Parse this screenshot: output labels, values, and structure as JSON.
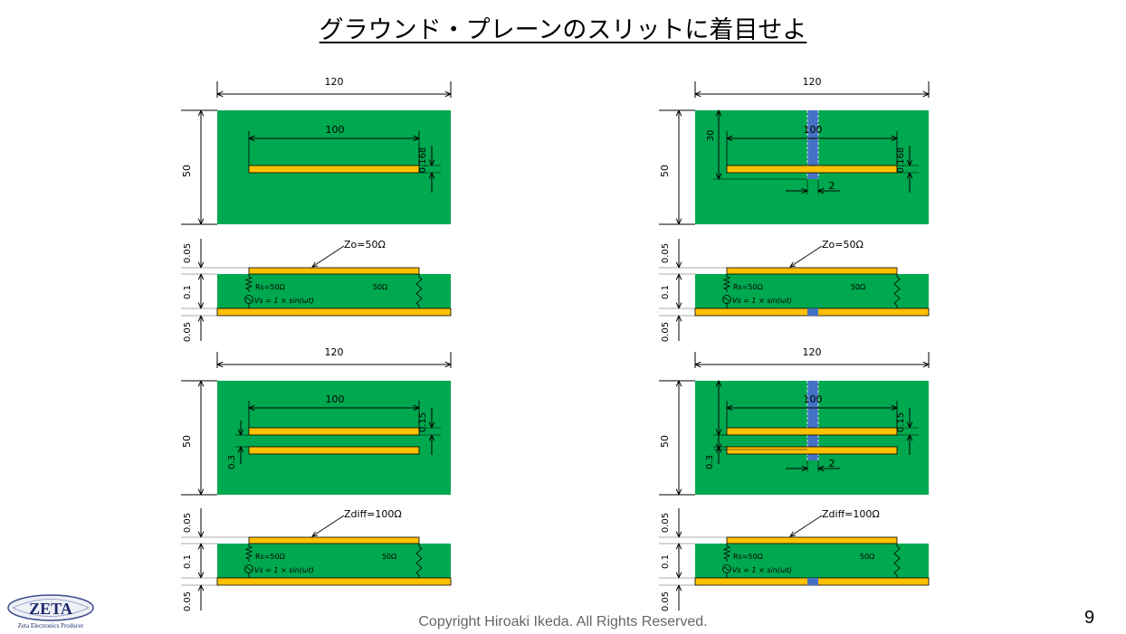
{
  "title": "グラウンド・プレーンのスリットに着目せよ",
  "dims": {
    "width": "120",
    "height": "50",
    "trace_length": "100",
    "trace_width": "0.168",
    "diff_trace_width": "0.15",
    "diff_gap": "0.3",
    "slit_offset": "30",
    "slit_width": "2",
    "layer_top": "0.05",
    "layer_core": "0.1",
    "layer_bottom": "0.05"
  },
  "labels": {
    "z_single": "Zo=50Ω",
    "z_diff": "Zdiff=100Ω",
    "rs": "Rs=50Ω",
    "rl": "50Ω",
    "source": "Vs = 1 × sin(ωt)"
  },
  "colors": {
    "board": "#00a84f",
    "trace": "#ffc000",
    "slit": "#4472c4"
  },
  "logo": {
    "name": "ZETA",
    "tagline": "Zeta Electronics Producer"
  },
  "footer": "Copyright Hiroaki Ikeda. All Rights Reserved.",
  "page_number": "9"
}
